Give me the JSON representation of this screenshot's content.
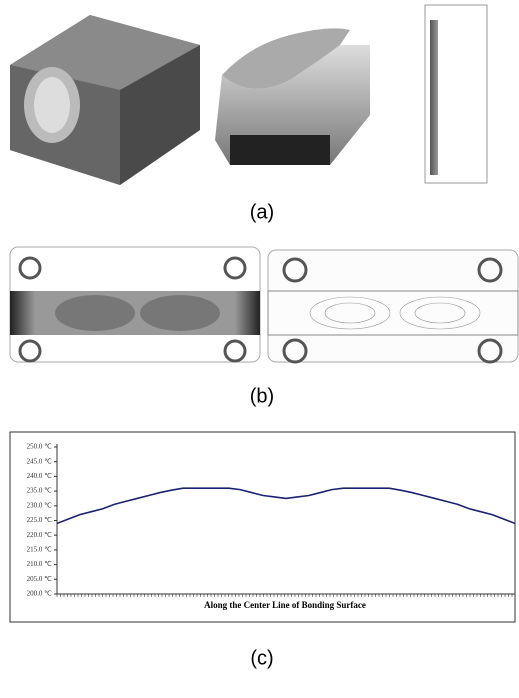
{
  "figure": {
    "captions": [
      "(a)",
      "(b)",
      "(c)"
    ]
  },
  "chart_data": {
    "type": "line",
    "xlabel": "Along the Center Line of Bonding Surface",
    "ylim": [
      200,
      250
    ],
    "yticks": [
      {
        "value": 200,
        "label": "200.0 ℃"
      },
      {
        "value": 205,
        "label": "205.0 ℃"
      },
      {
        "value": 210,
        "label": "210.0 ℃"
      },
      {
        "value": 215,
        "label": "215.0 ℃"
      },
      {
        "value": 220,
        "label": "220.0 ℃"
      },
      {
        "value": 225,
        "label": "225.0 ℃"
      },
      {
        "value": 230,
        "label": "230.0 ℃"
      },
      {
        "value": 235,
        "label": "235.0 ℃"
      },
      {
        "value": 240,
        "label": "240.0 ℃"
      },
      {
        "value": 245,
        "label": "245.0 ℃"
      },
      {
        "value": 250,
        "label": "250.0 ℃"
      }
    ],
    "series": [
      {
        "color": "#1a2372",
        "values": [
          224,
          225.5,
          227,
          228,
          229,
          230.5,
          231.5,
          232.5,
          233.5,
          234.5,
          235.3,
          236,
          236,
          236,
          236,
          236,
          235.5,
          234.5,
          233.5,
          233,
          232.5,
          233,
          233.5,
          234.5,
          235.5,
          236,
          236,
          236,
          236,
          236,
          235.3,
          234.5,
          233.5,
          232.5,
          231.5,
          230.5,
          229,
          228,
          227,
          225.5,
          224
        ]
      }
    ]
  }
}
